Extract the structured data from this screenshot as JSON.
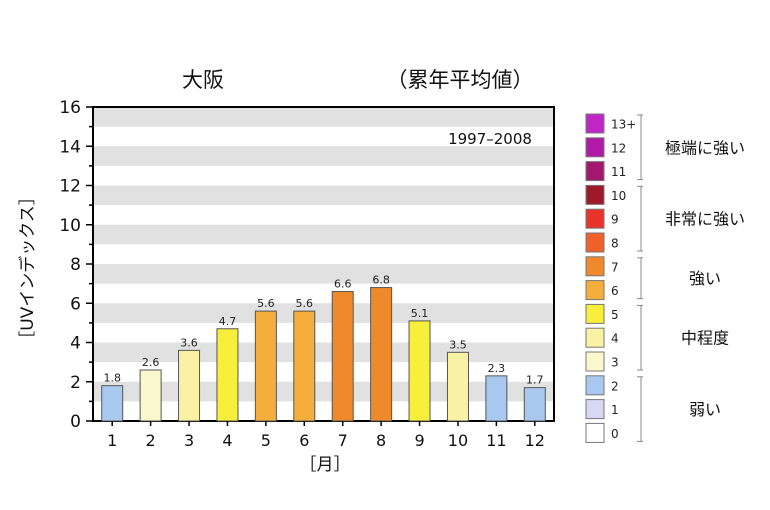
{
  "chart_data": {
    "type": "bar",
    "title": "大阪",
    "subtitle": "（累年平均値）",
    "period": "1997–2008",
    "xlabel": "［月］",
    "ylabel": "［UVインデックス］",
    "categories": [
      "1",
      "2",
      "3",
      "4",
      "5",
      "6",
      "7",
      "8",
      "9",
      "10",
      "11",
      "12"
    ],
    "values": [
      1.8,
      2.6,
      3.6,
      4.7,
      5.6,
      5.6,
      6.6,
      6.8,
      5.1,
      3.5,
      2.3,
      1.7
    ],
    "value_labels": [
      "1.8",
      "2.6",
      "3.6",
      "4.7",
      "5.6",
      "5.6",
      "6.6",
      "6.8",
      "5.1",
      "3.5",
      "2.3",
      "1.7"
    ],
    "ylim": [
      0,
      16
    ],
    "yticks": [
      "0",
      "2",
      "4",
      "6",
      "8",
      "10",
      "12",
      "14",
      "16"
    ],
    "grid": "alternating horizontal bands",
    "legend_position": "right"
  },
  "uv_scale": {
    "levels": [
      {
        "label": "13+",
        "color": "#c026c6"
      },
      {
        "label": "12",
        "color": "#b01aa6"
      },
      {
        "label": "11",
        "color": "#a3186f"
      },
      {
        "label": "10",
        "color": "#9e1a2b"
      },
      {
        "label": "9",
        "color": "#e8332b"
      },
      {
        "label": "8",
        "color": "#f0602a"
      },
      {
        "label": "7",
        "color": "#ef8a2c"
      },
      {
        "label": "6",
        "color": "#f4ae3b"
      },
      {
        "label": "5",
        "color": "#f8ef3c"
      },
      {
        "label": "4",
        "color": "#f9f2a4"
      },
      {
        "label": "3",
        "color": "#fbf8cd"
      },
      {
        "label": "2",
        "color": "#a9c8ef"
      },
      {
        "label": "1",
        "color": "#d8d8f4"
      },
      {
        "label": "0",
        "color": "#ffffff"
      }
    ],
    "categories": [
      {
        "label": "極端に強い"
      },
      {
        "label": "非常に強い"
      },
      {
        "label": "強い"
      },
      {
        "label": "中程度"
      },
      {
        "label": "弱い"
      }
    ]
  }
}
